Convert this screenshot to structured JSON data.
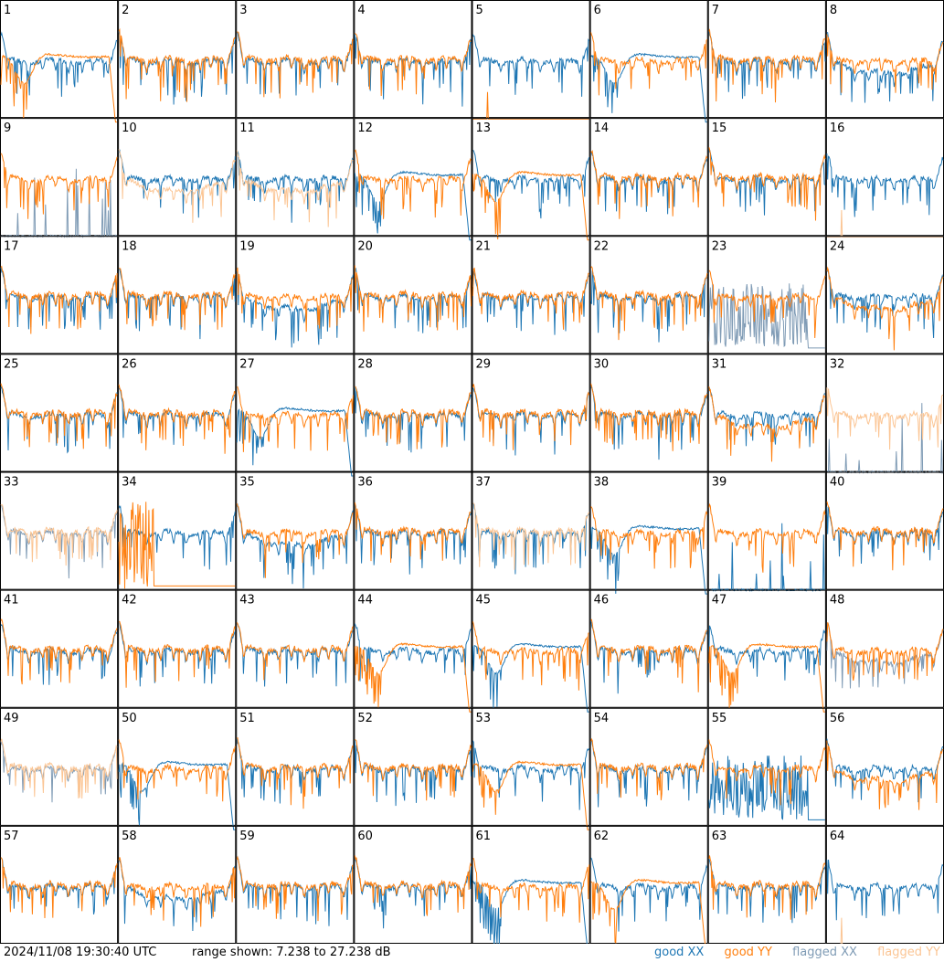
{
  "footer": {
    "timestamp": "2024/11/08 19:30:40 UTC",
    "range_text": "range shown: 7.238 to 27.238 dB"
  },
  "legend": [
    {
      "label": "good XX",
      "color": "#1f77b4"
    },
    {
      "label": "good YY",
      "color": "#ff7f0e"
    },
    {
      "label": "flagged XX",
      "color": "#7f9bb5"
    },
    {
      "label": "flagged YY",
      "color": "#fbc594"
    }
  ],
  "chart_data": {
    "type": "line",
    "ylim": [
      7.238,
      27.238
    ],
    "yunit": "dB",
    "panels": [
      {
        "label": "1",
        "xx": "good",
        "yy": "good",
        "shape": "rolloff_yy"
      },
      {
        "label": "2",
        "xx": "good",
        "yy": "good",
        "shape": "normal"
      },
      {
        "label": "3",
        "xx": "good",
        "yy": "good",
        "shape": "normal"
      },
      {
        "label": "4",
        "xx": "good",
        "yy": "good",
        "shape": "normal"
      },
      {
        "label": "5",
        "xx": "good",
        "yy": "good",
        "shape": "yy_dead"
      },
      {
        "label": "6",
        "xx": "good",
        "yy": "good",
        "shape": "rolloff_xx"
      },
      {
        "label": "7",
        "xx": "good",
        "yy": "good",
        "shape": "normal"
      },
      {
        "label": "8",
        "xx": "good",
        "yy": "good",
        "shape": "dip"
      },
      {
        "label": "9",
        "xx": "flagged",
        "yy": "good",
        "shape": "xx_dead"
      },
      {
        "label": "10",
        "xx": "good",
        "yy": "flagged",
        "shape": "lowyy"
      },
      {
        "label": "11",
        "xx": "good",
        "yy": "flagged",
        "shape": "lowyy"
      },
      {
        "label": "12",
        "xx": "good",
        "yy": "good",
        "shape": "rolloff_xx"
      },
      {
        "label": "13",
        "xx": "good",
        "yy": "good",
        "shape": "rolloff_yy"
      },
      {
        "label": "14",
        "xx": "good",
        "yy": "good",
        "shape": "normal"
      },
      {
        "label": "15",
        "xx": "good",
        "yy": "good",
        "shape": "normal"
      },
      {
        "label": "16",
        "xx": "good",
        "yy": "flagged",
        "shape": "yy_dead"
      },
      {
        "label": "17",
        "xx": "good",
        "yy": "good",
        "shape": "normal"
      },
      {
        "label": "18",
        "xx": "good",
        "yy": "good",
        "shape": "normal"
      },
      {
        "label": "19",
        "xx": "good",
        "yy": "good",
        "shape": "dip"
      },
      {
        "label": "20",
        "xx": "good",
        "yy": "good",
        "shape": "normal"
      },
      {
        "label": "21",
        "xx": "good",
        "yy": "good",
        "shape": "normal"
      },
      {
        "label": "22",
        "xx": "good",
        "yy": "good",
        "shape": "normal"
      },
      {
        "label": "23",
        "xx": "flagged",
        "yy": "good",
        "shape": "xx_noisy"
      },
      {
        "label": "24",
        "xx": "good",
        "yy": "good",
        "shape": "lowyy"
      },
      {
        "label": "25",
        "xx": "good",
        "yy": "good",
        "shape": "normal"
      },
      {
        "label": "26",
        "xx": "good",
        "yy": "good",
        "shape": "normal"
      },
      {
        "label": "27",
        "xx": "good",
        "yy": "good",
        "shape": "rolloff_xx"
      },
      {
        "label": "28",
        "xx": "good",
        "yy": "good",
        "shape": "normal"
      },
      {
        "label": "29",
        "xx": "good",
        "yy": "good",
        "shape": "normal"
      },
      {
        "label": "30",
        "xx": "good",
        "yy": "good",
        "shape": "normal"
      },
      {
        "label": "31",
        "xx": "good",
        "yy": "good",
        "shape": "lowyy"
      },
      {
        "label": "32",
        "xx": "flagged",
        "yy": "flagged",
        "shape": "xx_dead"
      },
      {
        "label": "33",
        "xx": "flagged",
        "yy": "flagged",
        "shape": "normal"
      },
      {
        "label": "34",
        "xx": "good",
        "yy": "good",
        "shape": "yy_noisy"
      },
      {
        "label": "35",
        "xx": "good",
        "yy": "good",
        "shape": "dip"
      },
      {
        "label": "36",
        "xx": "good",
        "yy": "good",
        "shape": "normal"
      },
      {
        "label": "37",
        "xx": "good",
        "yy": "flagged",
        "shape": "normal"
      },
      {
        "label": "38",
        "xx": "good",
        "yy": "good",
        "shape": "rolloff_xx"
      },
      {
        "label": "39",
        "xx": "good",
        "yy": "good",
        "shape": "xx_dead"
      },
      {
        "label": "40",
        "xx": "good",
        "yy": "good",
        "shape": "normal"
      },
      {
        "label": "41",
        "xx": "good",
        "yy": "good",
        "shape": "normal"
      },
      {
        "label": "42",
        "xx": "good",
        "yy": "good",
        "shape": "normal"
      },
      {
        "label": "43",
        "xx": "good",
        "yy": "good",
        "shape": "normal"
      },
      {
        "label": "44",
        "xx": "good",
        "yy": "good",
        "shape": "rolloff_yy"
      },
      {
        "label": "45",
        "xx": "good",
        "yy": "good",
        "shape": "rolloff_xx"
      },
      {
        "label": "46",
        "xx": "good",
        "yy": "good",
        "shape": "normal"
      },
      {
        "label": "47",
        "xx": "good",
        "yy": "good",
        "shape": "rolloff_yy"
      },
      {
        "label": "48",
        "xx": "flagged",
        "yy": "good",
        "shape": "dip"
      },
      {
        "label": "49",
        "xx": "flagged",
        "yy": "flagged",
        "shape": "normal"
      },
      {
        "label": "50",
        "xx": "good",
        "yy": "good",
        "shape": "rolloff_xx"
      },
      {
        "label": "51",
        "xx": "good",
        "yy": "good",
        "shape": "normal"
      },
      {
        "label": "52",
        "xx": "good",
        "yy": "good",
        "shape": "normal"
      },
      {
        "label": "53",
        "xx": "good",
        "yy": "good",
        "shape": "rolloff_yy"
      },
      {
        "label": "54",
        "xx": "good",
        "yy": "good",
        "shape": "normal"
      },
      {
        "label": "55",
        "xx": "good",
        "yy": "good",
        "shape": "xx_noisy"
      },
      {
        "label": "56",
        "xx": "good",
        "yy": "good",
        "shape": "lowyy"
      },
      {
        "label": "57",
        "xx": "good",
        "yy": "good",
        "shape": "normal"
      },
      {
        "label": "58",
        "xx": "good",
        "yy": "good",
        "shape": "dip"
      },
      {
        "label": "59",
        "xx": "good",
        "yy": "good",
        "shape": "normal"
      },
      {
        "label": "60",
        "xx": "good",
        "yy": "good",
        "shape": "normal"
      },
      {
        "label": "61",
        "xx": "good",
        "yy": "good",
        "shape": "rolloff_xx"
      },
      {
        "label": "62",
        "xx": "good",
        "yy": "good",
        "shape": "rolloff_yy"
      },
      {
        "label": "63",
        "xx": "good",
        "yy": "good",
        "shape": "normal"
      },
      {
        "label": "64",
        "xx": "good",
        "yy": "flagged",
        "shape": "yy_dead"
      }
    ]
  }
}
